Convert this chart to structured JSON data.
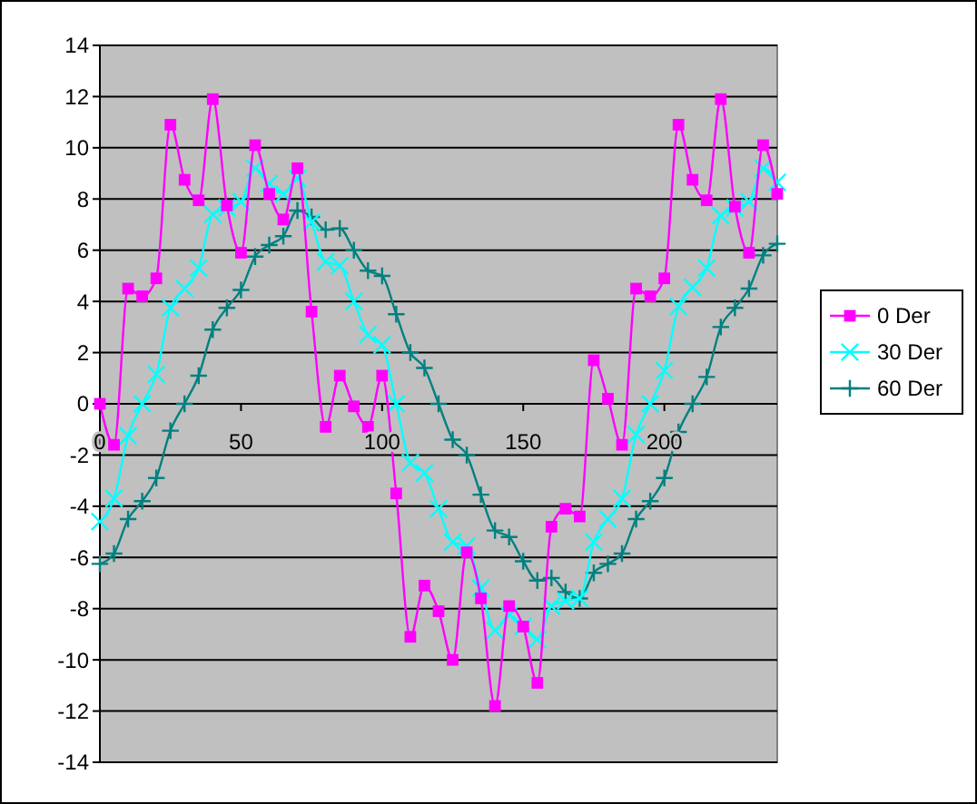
{
  "chart_data": {
    "type": "line",
    "xlim": [
      0,
      240
    ],
    "xticks": [
      0,
      50,
      100,
      150,
      200
    ],
    "ylim": [
      -14,
      14
    ],
    "yticks": [
      -14,
      -12,
      -10,
      -8,
      -6,
      -4,
      -2,
      0,
      2,
      4,
      6,
      8,
      10,
      12,
      14
    ],
    "grid": "y",
    "legend": "right",
    "x": [
      0,
      5,
      10,
      15,
      20,
      25,
      30,
      35,
      40,
      45,
      50,
      55,
      60,
      65,
      70,
      75,
      80,
      85,
      90,
      95,
      100,
      105,
      110,
      115,
      120,
      125,
      130,
      135,
      140,
      145,
      150,
      155,
      160,
      165,
      170,
      175,
      180,
      185,
      190,
      195,
      200,
      205,
      210,
      215,
      220,
      225,
      230,
      235,
      240
    ],
    "series": [
      {
        "name": "0 Der",
        "color": "#ff00ff",
        "marker": "square",
        "values": [
          0,
          -1.6,
          4.5,
          4.2,
          4.9,
          10.9,
          8.75,
          7.95,
          11.9,
          7.75,
          5.9,
          10.1,
          8.2,
          7.2,
          9.2,
          3.6,
          -0.9,
          1.1,
          -0.1,
          -0.9,
          1.1,
          -3.5,
          -9.1,
          -7.1,
          -8.1,
          -10,
          -5.8,
          -7.6,
          -11.8,
          -7.9,
          -8.7,
          -10.9,
          -4.8,
          -4.1,
          -4.4,
          1.7,
          0.2,
          -1.6,
          4.5,
          4.2,
          4.9,
          10.9,
          8.75,
          7.95,
          11.9,
          7.7,
          5.9,
          10.1,
          8.2
        ]
      },
      {
        "name": "30 Der",
        "color": "#00ffff",
        "marker": "cross",
        "values": [
          -4.6,
          -3.7,
          -1.25,
          0,
          1.15,
          3.75,
          4.5,
          5.3,
          7.4,
          7.65,
          7.9,
          9.2,
          8.6,
          8.2,
          8.8,
          7.1,
          5.55,
          5.4,
          4,
          2.7,
          2.3,
          0,
          -2.3,
          -2.7,
          -4.1,
          -5.4,
          -5.55,
          -7.2,
          -8.85,
          -8.25,
          -8.7,
          -9.2,
          -7.9,
          -7.7,
          -7.6,
          -5.4,
          -4.5,
          -3.7,
          -1.2,
          0,
          1.3,
          3.8,
          4.55,
          5.3,
          7.35,
          7.65,
          7.9,
          9.2,
          8.65
        ]
      },
      {
        "name": "60 Der",
        "color": "#008080",
        "marker": "plus",
        "values": [
          -6.25,
          -5.85,
          -4.5,
          -3.8,
          -2.9,
          -1.05,
          0,
          1.1,
          2.9,
          3.75,
          4.45,
          5.75,
          6.2,
          6.55,
          7.55,
          7.3,
          6.8,
          6.85,
          6,
          5.2,
          5,
          3.5,
          2,
          1.4,
          0,
          -1.4,
          -2,
          -3.55,
          -4.95,
          -5.2,
          -6.15,
          -6.9,
          -6.8,
          -7.35,
          -7.6,
          -6.6,
          -6.25,
          -5.85,
          -4.5,
          -3.8,
          -2.9,
          -1.1,
          0,
          1.05,
          3,
          3.75,
          4.5,
          5.8,
          6.25
        ]
      }
    ]
  }
}
